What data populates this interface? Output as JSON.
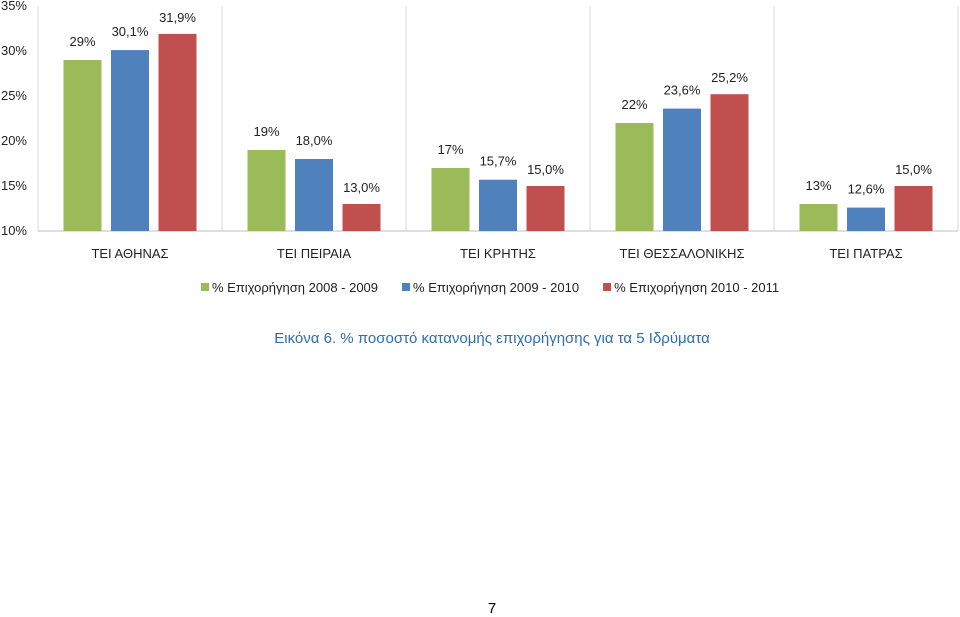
{
  "chart_data": {
    "type": "bar",
    "categories": [
      "ΤΕΙ ΑΘΗΝΑΣ",
      "ΤΕΙ ΠΕΙΡΑΙΑ",
      "ΤΕΙ ΚΡΗΤΗΣ",
      "ΤΕΙ ΘΕΣΣΑΛΟΝΙΚΗΣ",
      "ΤΕΙ ΠΑΤΡΑΣ"
    ],
    "series": [
      {
        "name": "% Επιχορήγηση 2008 - 2009",
        "color": "#9bbb59",
        "values": [
          29,
          19,
          17,
          22,
          13
        ],
        "labels": [
          "29%",
          "19%",
          "17%",
          "22%",
          "13%"
        ]
      },
      {
        "name": "% Επιχορήγηση 2009 - 2010",
        "color": "#4f81bd",
        "values": [
          30.1,
          18.0,
          15.7,
          23.6,
          12.6
        ],
        "labels": [
          "30,1%",
          "18,0%",
          "15,7%",
          "23,6%",
          "12,6%"
        ]
      },
      {
        "name": "% Επιχορήγηση 2010 - 2011",
        "color": "#c0504d",
        "values": [
          31.9,
          13.0,
          15.0,
          25.2,
          15.0
        ],
        "labels": [
          "31,9%",
          "13,0%",
          "15,0%",
          "25,2%",
          "15,0%"
        ]
      }
    ],
    "ylim": [
      10,
      35
    ],
    "yticks": [
      10,
      15,
      20,
      25,
      30,
      35
    ],
    "ytick_labels": [
      "10%",
      "15%",
      "20%",
      "25%",
      "30%",
      "35%"
    ],
    "grid": "vertical",
    "legend_position": "bottom"
  },
  "caption": "Εικόνα 6. % ποσοστό κατανομής επιχορήγησης για τα 5 Ιδρύματα",
  "page_number": "7"
}
